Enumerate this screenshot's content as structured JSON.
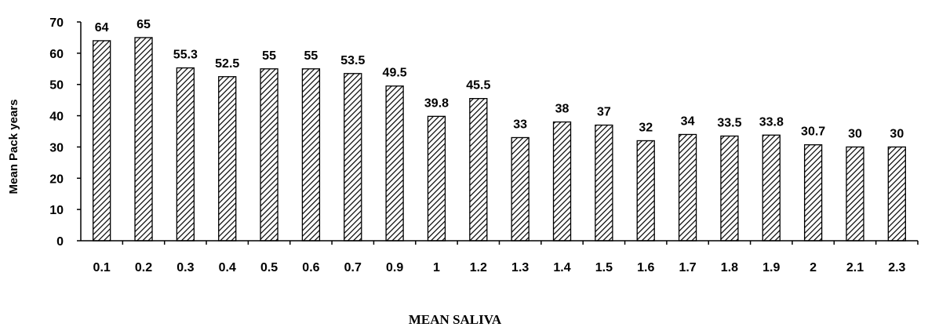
{
  "chart_data": {
    "type": "bar",
    "categories": [
      "0.1",
      "0.2",
      "0.3",
      "0.4",
      "0.5",
      "0.6",
      "0.7",
      "0.9",
      "1",
      "1.2",
      "1.3",
      "1.4",
      "1.5",
      "1.6",
      "1.7",
      "1.8",
      "1.9",
      "2",
      "2.1",
      "2.3"
    ],
    "values": [
      64,
      65,
      55.3,
      52.5,
      55,
      55,
      53.5,
      49.5,
      39.8,
      45.5,
      33,
      38,
      37,
      32,
      34,
      33.5,
      33.8,
      30.7,
      30,
      30
    ],
    "data_labels": [
      "64",
      "65",
      "55.3",
      "52.5",
      "55",
      "55",
      "53.5",
      "49.5",
      "39.8",
      "45.5",
      "33",
      "38",
      "37",
      "32",
      "34",
      "33.5",
      "33.8",
      "30.7",
      "30",
      "30"
    ],
    "xlabel": "MEAN SALIVA",
    "ylabel": "Mean Pack years",
    "ylim": [
      0,
      70
    ],
    "yticks": [
      "0",
      "10",
      "20",
      "30",
      "40",
      "50",
      "60",
      "70"
    ],
    "bar_pattern": "diagonal-hatch",
    "bar_color": "#000000",
    "grid": false,
    "legend": false
  }
}
